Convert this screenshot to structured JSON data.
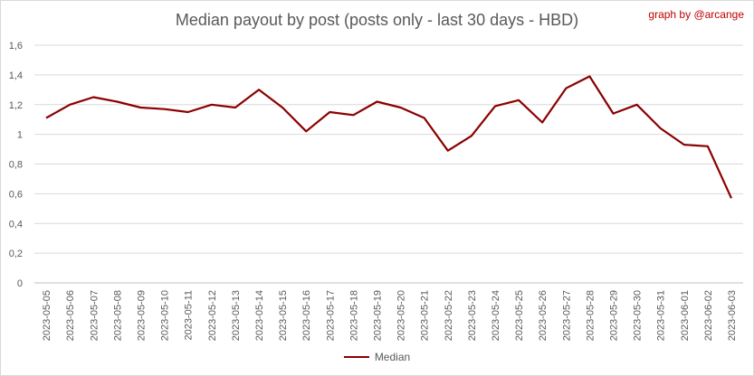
{
  "chart_data": {
    "type": "line",
    "title": "Median payout by post (posts only - last 30 days - HBD)",
    "credit": "graph by @arcange",
    "xlabel": "",
    "ylabel": "",
    "ylim": [
      0,
      1.6
    ],
    "yticks": [
      "0",
      "0,2",
      "0,4",
      "0,6",
      "0,8",
      "1",
      "1,2",
      "1,4",
      "1,6"
    ],
    "grid": true,
    "legend_position": "bottom",
    "categories": [
      "2023-05-05",
      "2023-05-06",
      "2023-05-07",
      "2023-05-08",
      "2023-05-09",
      "2023-05-10",
      "2023-05-11",
      "2023-05-12",
      "2023-05-13",
      "2023-05-14",
      "2023-05-15",
      "2023-05-16",
      "2023-05-17",
      "2023-05-18",
      "2023-05-19",
      "2023-05-20",
      "2023-05-21",
      "2023-05-22",
      "2023-05-23",
      "2023-05-24",
      "2023-05-25",
      "2023-05-26",
      "2023-05-27",
      "2023-05-28",
      "2023-05-29",
      "2023-05-30",
      "2023-05-31",
      "2023-06-01",
      "2023-06-02",
      "2023-06-03"
    ],
    "series": [
      {
        "name": "Median",
        "color": "#8b0000",
        "values": [
          1.11,
          1.2,
          1.25,
          1.22,
          1.18,
          1.17,
          1.15,
          1.2,
          1.18,
          1.3,
          1.18,
          1.02,
          1.15,
          1.13,
          1.22,
          1.18,
          1.11,
          0.89,
          0.99,
          1.19,
          1.23,
          1.08,
          1.31,
          1.39,
          1.14,
          1.2,
          1.04,
          0.93,
          0.92,
          0.57
        ]
      }
    ]
  }
}
